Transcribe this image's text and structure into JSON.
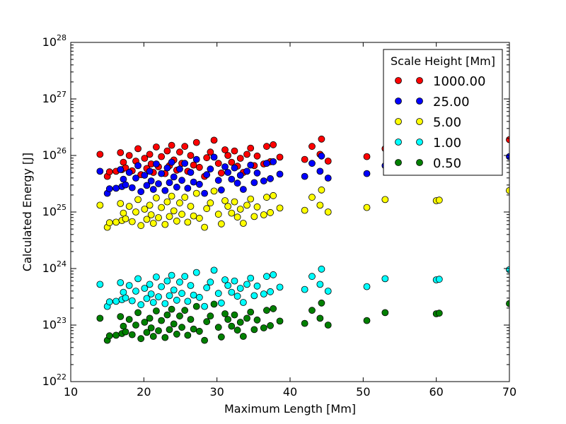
{
  "chart_data": {
    "type": "scatter",
    "title": "",
    "xlabel": "Maximum Length [Mm]",
    "ylabel": "Calculated Energy [J]",
    "xlim": [
      10,
      70
    ],
    "ylim": [
      1e+22,
      1e+28
    ],
    "yscale": "log",
    "x_ticks": [
      10,
      20,
      30,
      40,
      50,
      60,
      70
    ],
    "x_tick_labels": [
      "10",
      "20",
      "30",
      "40",
      "50",
      "60",
      "70"
    ],
    "y_ticks": [
      22,
      23,
      24,
      25,
      26,
      27,
      28
    ],
    "y_tick_base": "10",
    "legend": {
      "title": "Scale Height [Mm]",
      "position": "top-right"
    },
    "x": [
      14.0,
      15.0,
      15.3,
      16.2,
      16.8,
      17.0,
      17.2,
      17.5,
      18.0,
      18.4,
      18.9,
      19.2,
      19.6,
      20.1,
      20.4,
      20.8,
      21.0,
      21.3,
      21.7,
      22.0,
      22.4,
      22.9,
      23.2,
      23.5,
      23.8,
      24.1,
      24.5,
      24.9,
      25.2,
      25.6,
      26.0,
      26.4,
      26.8,
      27.2,
      27.6,
      28.3,
      28.6,
      29.1,
      29.6,
      30.2,
      30.6,
      31.1,
      31.5,
      32.0,
      32.4,
      32.8,
      33.2,
      33.6,
      34.1,
      34.6,
      35.1,
      35.5,
      36.4,
      36.8,
      37.3,
      37.7,
      38.6,
      42.0,
      43.0,
      44.1,
      44.3,
      45.2,
      50.5,
      53.0,
      60.0,
      60.4,
      70.0
    ],
    "log_ratio_base": [
      25.12,
      24.73,
      24.81,
      24.82,
      25.15,
      24.85,
      24.98,
      24.88,
      25.1,
      24.83,
      25.0,
      25.22,
      24.76,
      25.05,
      24.87,
      25.12,
      24.95,
      24.8,
      25.25,
      24.9,
      25.08,
      24.78,
      25.18,
      24.92,
      25.28,
      25.02,
      24.84,
      25.16,
      24.96,
      25.26,
      24.82,
      25.1,
      24.93,
      25.33,
      24.89,
      24.73,
      25.06,
      25.16,
      25.37,
      24.96,
      24.79,
      25.2,
      25.1,
      24.98,
      25.18,
      24.91,
      25.05,
      24.8,
      25.12,
      25.23,
      24.92,
      25.09,
      24.95,
      25.26,
      24.99,
      25.29,
      25.07,
      25.03,
      25.26,
      25.12,
      25.39,
      25.0,
      25.08,
      25.22,
      25.2,
      25.21,
      25.38
    ],
    "series": [
      {
        "name": "1000.00",
        "color": "#ff0000",
        "log_offset": 0.9
      },
      {
        "name": "25.00",
        "color": "#0000ff",
        "log_offset": 0.6
      },
      {
        "name": "5.00",
        "color": "#ffff00",
        "log_offset": 0.0
      },
      {
        "name": "1.00",
        "color": "#00ffff",
        "log_offset": -1.4
      },
      {
        "name": "0.50",
        "color": "#008000",
        "log_offset": -2.0
      }
    ]
  }
}
